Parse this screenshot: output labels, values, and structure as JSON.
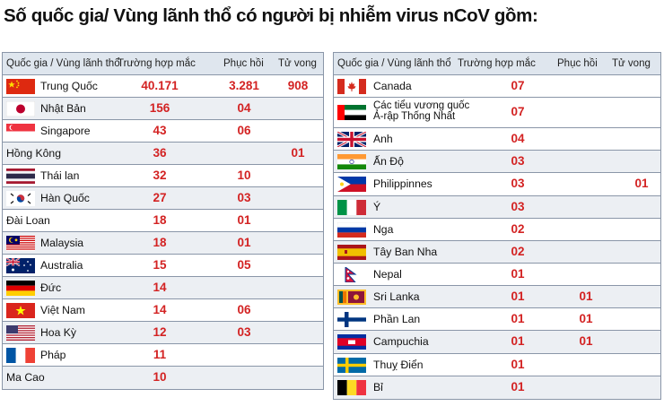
{
  "title": "Số quốc gia/ Vùng lãnh thổ có người bị nhiễm virus nCoV gồm:",
  "headers": {
    "country": "Quốc gia / Vùng lãnh thổ",
    "cases": "Trường hợp mắc",
    "recovered": "Phục hồi",
    "deaths": "Tử vong"
  },
  "left": [
    {
      "name": "Trung Quốc",
      "flag": "china-flag-icon",
      "cases": "40.171",
      "recovered": "3.281",
      "deaths": "908"
    },
    {
      "name": "Nhật Bản",
      "flag": "japan-flag-icon",
      "cases": "156",
      "recovered": "04",
      "deaths": ""
    },
    {
      "name": "Singapore",
      "flag": "singapore-flag-icon",
      "cases": "43",
      "recovered": "06",
      "deaths": ""
    },
    {
      "name": "Hồng Kông",
      "flag": "",
      "cases": "36",
      "recovered": "",
      "deaths": "01"
    },
    {
      "name": "Thái lan",
      "flag": "thailand-flag-icon",
      "cases": "32",
      "recovered": "10",
      "deaths": ""
    },
    {
      "name": "Hàn Quốc",
      "flag": "south-korea-flag-icon",
      "cases": "27",
      "recovered": "03",
      "deaths": ""
    },
    {
      "name": "Đài Loan",
      "flag": "",
      "cases": "18",
      "recovered": "01",
      "deaths": ""
    },
    {
      "name": "Malaysia",
      "flag": "malaysia-flag-icon",
      "cases": "18",
      "recovered": "01",
      "deaths": ""
    },
    {
      "name": "Australia",
      "flag": "australia-flag-icon",
      "cases": "15",
      "recovered": "05",
      "deaths": ""
    },
    {
      "name": "Đức",
      "flag": "germany-flag-icon",
      "cases": "14",
      "recovered": "",
      "deaths": ""
    },
    {
      "name": "Việt Nam",
      "flag": "vietnam-flag-icon",
      "cases": "14",
      "recovered": "06",
      "deaths": ""
    },
    {
      "name": "Hoa Kỳ",
      "flag": "usa-flag-icon",
      "cases": "12",
      "recovered": "03",
      "deaths": ""
    },
    {
      "name": "Pháp",
      "flag": "france-flag-icon",
      "cases": "11",
      "recovered": "",
      "deaths": ""
    },
    {
      "name": "Ma Cao",
      "flag": "",
      "cases": "10",
      "recovered": "",
      "deaths": ""
    }
  ],
  "right": [
    {
      "name": "Canada",
      "flag": "canada-flag-icon",
      "cases": "07",
      "recovered": "",
      "deaths": ""
    },
    {
      "name": "Các tiểu vương quốc",
      "name2": "Ả-rập Thống Nhất",
      "flag": "uae-flag-icon",
      "cases": "07",
      "recovered": "",
      "deaths": ""
    },
    {
      "name": "Anh",
      "flag": "uk-flag-icon",
      "cases": "04",
      "recovered": "",
      "deaths": ""
    },
    {
      "name": "Ấn Độ",
      "flag": "india-flag-icon",
      "cases": "03",
      "recovered": "",
      "deaths": ""
    },
    {
      "name": "Philippinnes",
      "flag": "philippines-flag-icon",
      "cases": "03",
      "recovered": "",
      "deaths": "01"
    },
    {
      "name": "Ý",
      "flag": "italy-flag-icon",
      "cases": "03",
      "recovered": "",
      "deaths": ""
    },
    {
      "name": "Nga",
      "flag": "russia-flag-icon",
      "cases": "02",
      "recovered": "",
      "deaths": ""
    },
    {
      "name": "Tây Ban Nha",
      "flag": "spain-flag-icon",
      "cases": "02",
      "recovered": "",
      "deaths": ""
    },
    {
      "name": "Nepal",
      "flag": "nepal-flag-icon",
      "cases": "01",
      "recovered": "",
      "deaths": ""
    },
    {
      "name": "Sri Lanka",
      "flag": "sri-lanka-flag-icon",
      "cases": "01",
      "recovered": "01",
      "deaths": ""
    },
    {
      "name": "Phần Lan",
      "flag": "finland-flag-icon",
      "cases": "01",
      "recovered": "01",
      "deaths": ""
    },
    {
      "name": "Campuchia",
      "flag": "cambodia-flag-icon",
      "cases": "01",
      "recovered": "01",
      "deaths": ""
    },
    {
      "name": "Thuỵ Điển",
      "flag": "sweden-flag-icon",
      "cases": "01",
      "recovered": "",
      "deaths": ""
    },
    {
      "name": "Bỉ",
      "flag": "belgium-flag-icon",
      "cases": "01",
      "recovered": "",
      "deaths": ""
    }
  ]
}
